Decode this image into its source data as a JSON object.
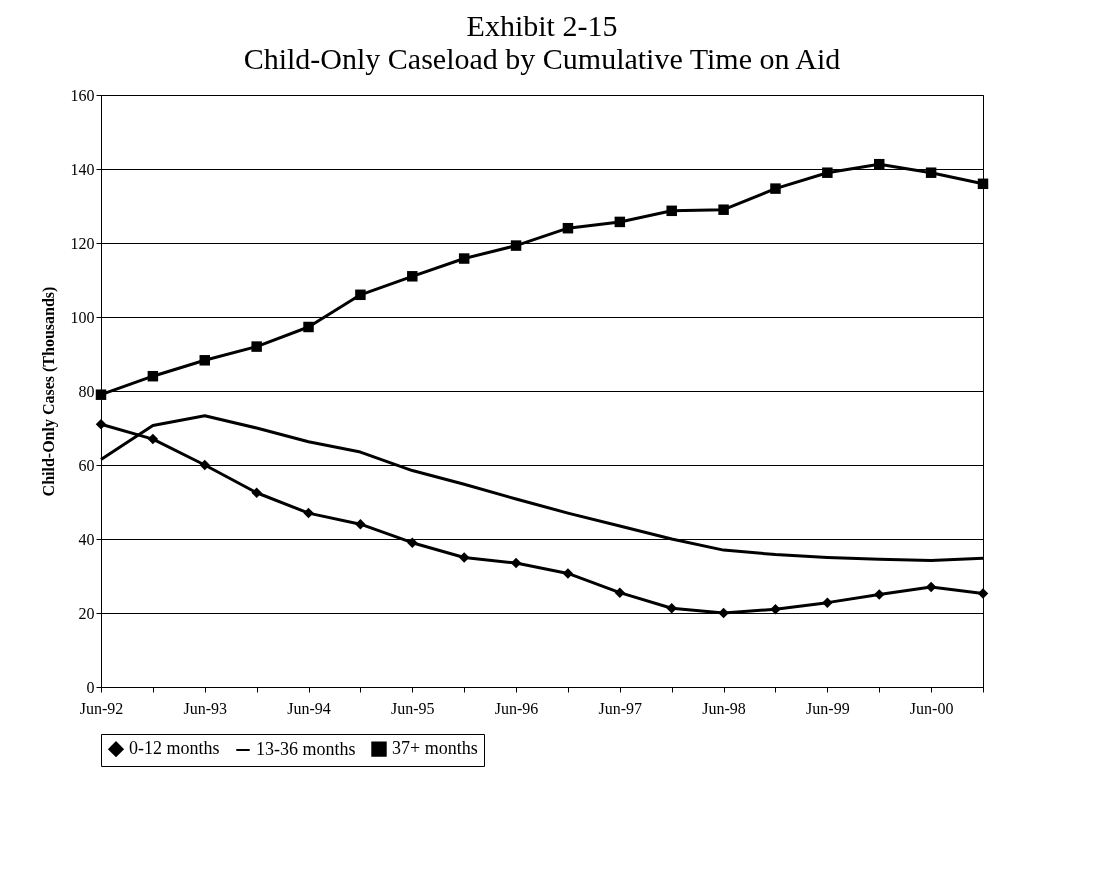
{
  "chart_data": {
    "type": "line",
    "title": "Exhibit 2-15",
    "subtitle": "Child-Only Caseload by Cumulative Time on Aid",
    "ylabel": "Child-Only Cases (Thousands)",
    "categories": [
      "Jun-92",
      null,
      "Jun-93",
      null,
      "Jun-94",
      null,
      "Jun-95",
      null,
      "Jun-96",
      null,
      "Jun-97",
      null,
      "Jun-98",
      null,
      "Jun-99",
      null,
      "Jun-00",
      null
    ],
    "series": [
      {
        "name": "0-12 months",
        "color": "#000000",
        "marker": "diamond",
        "values": [
          71,
          67,
          60,
          52.5,
          47,
          44,
          39,
          35,
          33.5,
          30.7,
          25.5,
          21.3,
          20,
          21,
          22.8,
          25,
          27,
          25.3
        ]
      },
      {
        "name": "13-36 months",
        "color": "#000000",
        "marker": "none",
        "values": [
          61.5,
          70.7,
          73.3,
          70,
          66.3,
          63.5,
          58.5,
          54.8,
          50.8,
          47,
          43.5,
          40,
          37,
          35.8,
          35,
          34.5,
          34.2,
          34.8
        ]
      },
      {
        "name": "37+ months",
        "color": "#000000",
        "marker": "square",
        "values": [
          79,
          84,
          88.3,
          92,
          97.3,
          106,
          111,
          115.8,
          119.3,
          124,
          125.7,
          128.7,
          129,
          134.7,
          139,
          141.3,
          139,
          136
        ]
      }
    ],
    "ylim": [
      0,
      160
    ],
    "yticks": [
      0,
      20,
      40,
      60,
      80,
      100,
      120,
      140,
      160
    ],
    "grid": "y",
    "legend": "bottom"
  }
}
